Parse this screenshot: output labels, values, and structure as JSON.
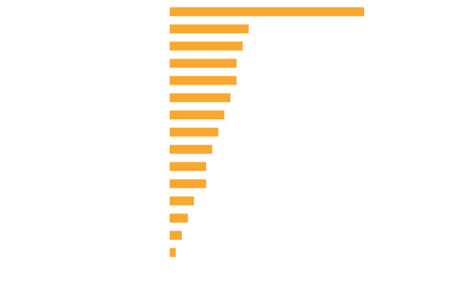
{
  "chart_data": {
    "type": "barh",
    "values": [
      32,
      13,
      12,
      11,
      11,
      10,
      9,
      8,
      7,
      6,
      6,
      4,
      3,
      2,
      1
    ],
    "color": "#f9a82f",
    "xlim": [
      0,
      32
    ]
  }
}
